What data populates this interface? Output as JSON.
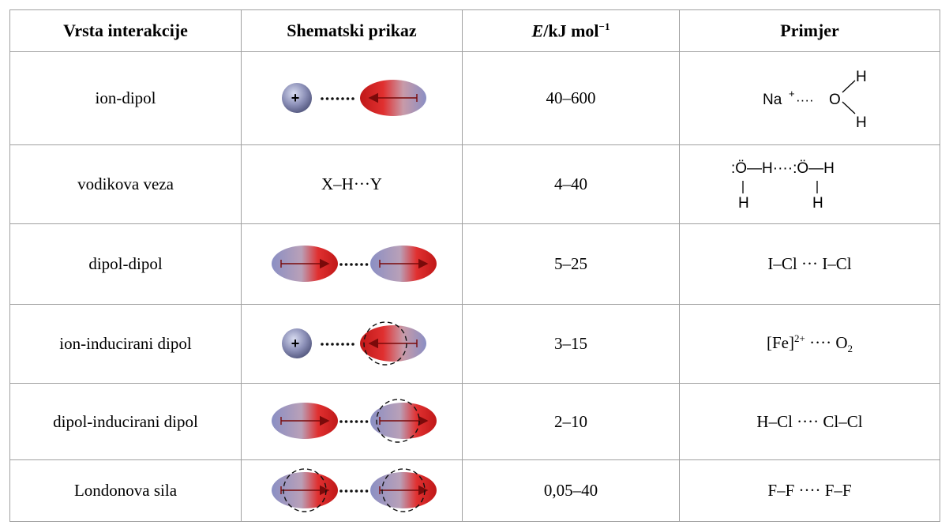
{
  "table": {
    "header": [
      "Vrsta interakcije",
      "Shematski prikaz",
      {
        "symbol": "E",
        "unit": "/kJ mol",
        "exponent": "−1"
      },
      "Primjer"
    ],
    "rows": [
      {
        "type": "ion-dipol",
        "charge": "+",
        "energy": "40–600",
        "example": {
          "cation": "Na",
          "cation_charge": "+",
          "dots": "····",
          "atom": "O",
          "h_top": "H",
          "h_bottom": "H"
        }
      },
      {
        "type": "vodikova veza",
        "schematic": "X–H···Y",
        "energy": "4–40",
        "example": {
          "line": ":Ö—H····:Ö—H",
          "h_left": "H",
          "h_right": "H"
        }
      },
      {
        "type": "dipol-dipol",
        "energy": "5–25",
        "example": "I–Cl ··· I–Cl"
      },
      {
        "type": "ion-inducirani dipol",
        "charge": "+",
        "energy": "3–15",
        "example": {
          "base": "[Fe]",
          "sup": "2+",
          "mid": " ···· O",
          "sub": "2"
        }
      },
      {
        "type": "dipol-inducirani dipol",
        "energy": "2–10",
        "example": "H–Cl ···· Cl–Cl"
      },
      {
        "type": "Londonova sila",
        "energy": "0,05–40",
        "example": "F–F ···· F–F"
      }
    ]
  }
}
